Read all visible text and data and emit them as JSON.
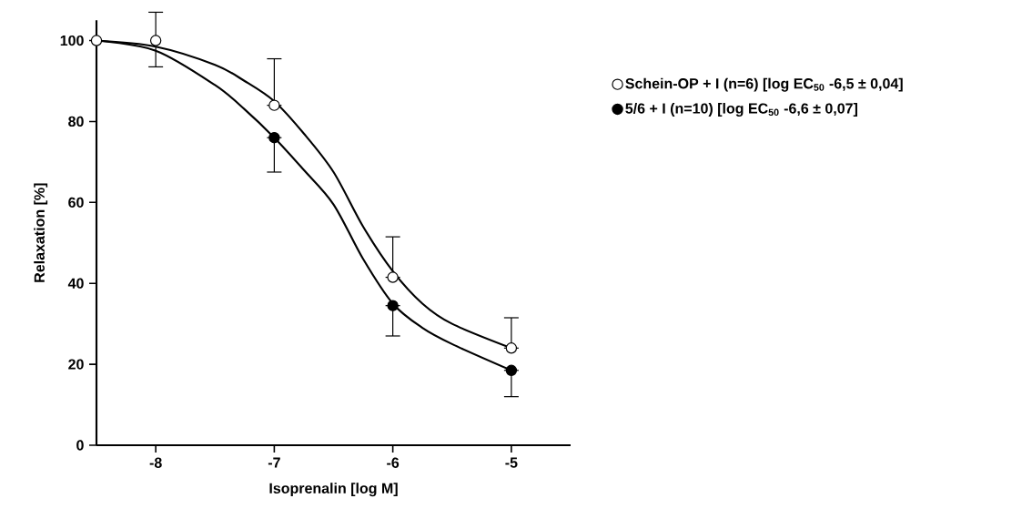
{
  "chart_data": {
    "type": "scatter",
    "xlabel": "Isoprenalin [log M]",
    "ylabel": "Relaxation [%]",
    "xlim": [
      -8.5,
      -4.5
    ],
    "xticks": [
      -8,
      -7,
      -6,
      -5
    ],
    "ylim": [
      0,
      105
    ],
    "yticks": [
      0,
      20,
      40,
      60,
      80,
      100
    ],
    "grid": false,
    "legend": "right",
    "marker": "circle",
    "series": [
      {
        "type": "line",
        "color": "#000000",
        "marker": "none",
        "x": [
          -8.5,
          -8,
          -7.5,
          -7.25,
          -7,
          -6.75,
          -6.5,
          -6.25,
          -6,
          -5.75,
          -5.5,
          -5
        ],
        "values": [
          100,
          98.5,
          94,
          90,
          85,
          77,
          67.5,
          54,
          43,
          35,
          30,
          24
        ]
      },
      {
        "type": "line",
        "color": "#000000",
        "marker": "none",
        "x": [
          -8.5,
          -8,
          -7.5,
          -7.25,
          -7,
          -6.75,
          -6.5,
          -6.25,
          -6,
          -5.75,
          -5.5,
          -5
        ],
        "values": [
          100,
          97.5,
          89,
          83,
          76,
          68,
          59.5,
          46,
          35,
          29,
          25,
          18.5
        ]
      },
      {
        "name": "Schein-OP + I (n=6) [log EC$_{50}$ -6,5 ± 0,04]",
        "color": "#ffffff",
        "x": [
          -8.5,
          -8,
          -7,
          -6,
          -5
        ],
        "values": [
          100,
          100,
          84,
          41.5,
          24
        ],
        "errors": [
          null,
          [
            93.5,
            107
          ],
          [
            84,
            95.5
          ],
          [
            41.5,
            51.5
          ],
          [
            24,
            31.5
          ]
        ]
      },
      {
        "name": "5/6 + I          (n=10) [log EC$_{50}$ -6,6 ± 0,07]",
        "color": "#000000",
        "x": [
          -7,
          -6,
          -5
        ],
        "values": [
          76,
          34.5,
          18.5
        ],
        "errors": [
          [
            67.5,
            76
          ],
          [
            27,
            34.5
          ],
          [
            12,
            18.5
          ]
        ]
      }
    ]
  }
}
